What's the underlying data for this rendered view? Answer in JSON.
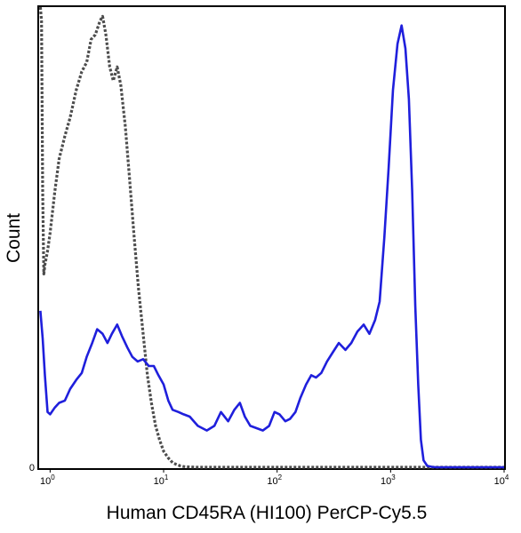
{
  "chart_data": {
    "type": "line",
    "title": "",
    "xlabel": "Human CD45RA (HI100) PerCP-Cy5.5",
    "ylabel": "Count",
    "x_scale": "log",
    "xlim": [
      0.8,
      10000
    ],
    "ylim": [
      0,
      100
    ],
    "x_ticks": [
      {
        "value": 1,
        "base": "10",
        "exp": "0"
      },
      {
        "value": 10,
        "base": "10",
        "exp": "1"
      },
      {
        "value": 100,
        "base": "10",
        "exp": "2"
      },
      {
        "value": 1000,
        "base": "10",
        "exp": "3"
      },
      {
        "value": 10000,
        "base": "10",
        "exp": "4"
      }
    ],
    "y_ticks": [
      {
        "value": 0,
        "label": "0"
      }
    ],
    "grid": false,
    "series": [
      {
        "style": "solid",
        "color": "#1f1fdc",
        "x": [
          0.82,
          0.86,
          0.9,
          0.95,
          1.0,
          1.1,
          1.2,
          1.35,
          1.5,
          1.7,
          1.9,
          2.1,
          2.35,
          2.6,
          2.9,
          3.2,
          3.5,
          3.9,
          4.3,
          4.8,
          5.3,
          5.9,
          6.6,
          7.4,
          8.2,
          9.0,
          10,
          11,
          12,
          13.5,
          15,
          17,
          20,
          24,
          28,
          32,
          37,
          42,
          47,
          52,
          58,
          66,
          75,
          85,
          95,
          105,
          118,
          130,
          145,
          160,
          180,
          200,
          220,
          245,
          275,
          310,
          350,
          400,
          450,
          510,
          580,
          650,
          730,
          800,
          880,
          960,
          1050,
          1150,
          1250,
          1350,
          1450,
          1550,
          1650,
          1750,
          1850,
          1950,
          2100,
          2300,
          2500,
          2750,
          3000,
          3300,
          3700,
          4200,
          5000,
          6500,
          8000,
          10000
        ],
        "y": [
          34,
          28,
          20,
          12,
          11.5,
          13,
          14,
          14.5,
          17,
          19,
          20.5,
          24,
          27,
          30,
          29,
          27,
          29,
          31,
          28.5,
          26,
          24,
          23,
          23.5,
          22,
          22,
          20,
          18,
          14.5,
          12.5,
          12,
          11.5,
          11,
          9,
          8,
          9,
          12,
          10,
          12.5,
          14,
          11,
          9,
          8.5,
          8,
          9,
          12,
          11.5,
          10,
          10.5,
          12,
          15,
          18,
          20,
          19.5,
          20.5,
          23,
          25,
          27,
          25.5,
          27,
          29.5,
          31,
          29,
          32,
          36,
          50,
          65,
          82,
          92,
          96,
          91,
          80,
          60,
          35,
          18,
          6,
          1.5,
          0.3,
          0.1,
          0,
          0,
          0,
          0,
          0,
          0,
          0,
          0,
          0,
          0
        ]
      },
      {
        "style": "dotted",
        "color": "#4d4d4d",
        "x": [
          0.82,
          0.84,
          0.86,
          0.88,
          0.9,
          0.95,
          1.0,
          1.1,
          1.2,
          1.35,
          1.5,
          1.7,
          1.9,
          2.1,
          2.3,
          2.5,
          2.75,
          2.9,
          3.1,
          3.35,
          3.6,
          3.9,
          4.2,
          4.6,
          5.0,
          5.5,
          6.0,
          6.6,
          7.2,
          7.8,
          8.5,
          9.2,
          10,
          11,
          12,
          13,
          14,
          15,
          17,
          20,
          30,
          100,
          1000,
          10000
        ],
        "y": [
          100,
          97,
          60,
          42,
          44,
          47,
          51,
          60,
          67,
          72,
          76,
          82,
          86,
          88,
          93,
          94,
          97,
          98,
          94,
          87,
          84,
          87,
          83,
          74,
          63,
          50,
          39,
          29,
          20,
          14,
          9,
          6,
          3.5,
          2,
          1,
          0.6,
          0.3,
          0.15,
          0.05,
          0,
          0,
          0,
          0,
          0
        ]
      }
    ]
  }
}
